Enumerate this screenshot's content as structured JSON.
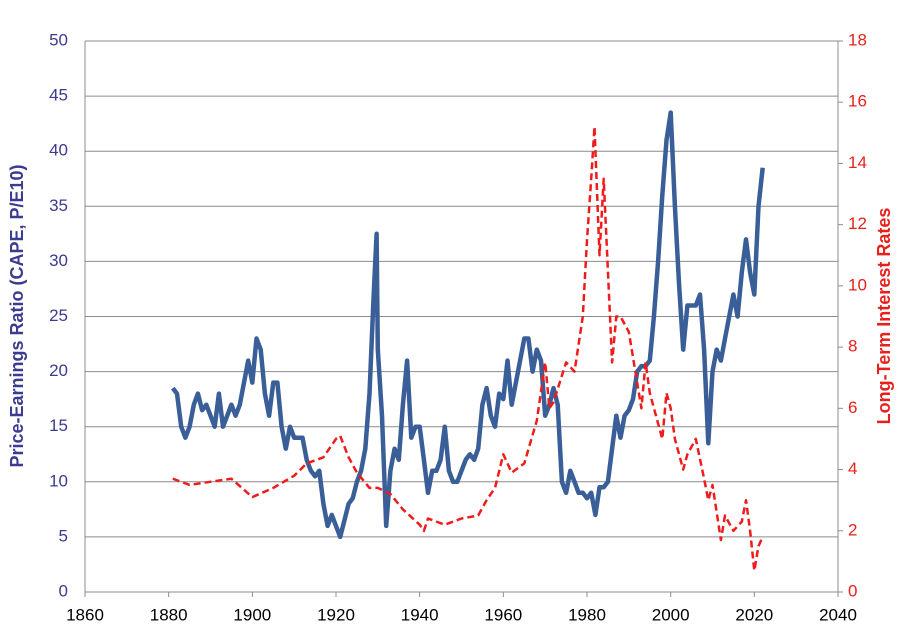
{
  "chart_data": {
    "type": "line",
    "y_label": "Price-Earnings Ratio (CAPE, P/E10)",
    "y2_label": "Long-Term Interest Rates",
    "xlim": [
      1860,
      2040
    ],
    "xticks": [
      1860,
      1880,
      1900,
      1920,
      1940,
      1960,
      1980,
      2000,
      2020,
      2040
    ],
    "ylim": [
      0,
      50
    ],
    "yticks": [
      0,
      5,
      10,
      15,
      20,
      25,
      30,
      35,
      40,
      45,
      50
    ],
    "y2lim": [
      0,
      18
    ],
    "y2ticks": [
      0,
      2,
      4,
      6,
      8,
      10,
      12,
      14,
      16,
      18
    ],
    "grid": true,
    "y_color": "#3b3b8f",
    "y2_color": "#e8201c",
    "series": [
      {
        "color": "#3a5f98",
        "dash": false,
        "axis": "y",
        "x": [
          1881,
          1882,
          1883,
          1884,
          1885,
          1886,
          1887,
          1888,
          1889,
          1890,
          1891,
          1892,
          1893,
          1894,
          1895,
          1896,
          1897,
          1898,
          1899,
          1900,
          1901,
          1902,
          1903,
          1904,
          1905,
          1906,
          1907,
          1908,
          1909,
          1910,
          1911,
          1912,
          1913,
          1914,
          1915,
          1916,
          1917,
          1918,
          1919,
          1920,
          1921,
          1922,
          1923,
          1924,
          1925,
          1926,
          1927,
          1928,
          1929,
          1929.7,
          1930,
          1931,
          1932,
          1933,
          1934,
          1935,
          1936,
          1937,
          1938,
          1939,
          1940,
          1941,
          1942,
          1943,
          1944,
          1945,
          1946,
          1947,
          1948,
          1949,
          1950,
          1951,
          1952,
          1953,
          1954,
          1955,
          1956,
          1957,
          1958,
          1959,
          1960,
          1961,
          1962,
          1963,
          1964,
          1965,
          1966,
          1967,
          1968,
          1969,
          1970,
          1971,
          1972,
          1973,
          1974,
          1975,
          1976,
          1977,
          1978,
          1979,
          1980,
          1981,
          1982,
          1983,
          1984,
          1985,
          1986,
          1987,
          1988,
          1989,
          1990,
          1991,
          1992,
          1993,
          1994,
          1995,
          1996,
          1997,
          1998,
          1999,
          2000,
          2001,
          2002,
          2003,
          2004,
          2005,
          2006,
          2007,
          2008,
          2009,
          2010,
          2011,
          2012,
          2013,
          2014,
          2015,
          2016,
          2017,
          2018,
          2019,
          2020,
          2021,
          2022
        ],
        "values": [
          18.5,
          18,
          15,
          14,
          15,
          17,
          18,
          16.5,
          17,
          16,
          15,
          18,
          15,
          16,
          17,
          16,
          17,
          19,
          21,
          19,
          23,
          22,
          18,
          16,
          19,
          19,
          15,
          13,
          15,
          14,
          14,
          14,
          12,
          11,
          10.5,
          11,
          8,
          6,
          7,
          6,
          5,
          6.5,
          8,
          8.5,
          10,
          11,
          13,
          18,
          27,
          32.5,
          22,
          16,
          6,
          11,
          13,
          12,
          17,
          21,
          14,
          15,
          15,
          12,
          9,
          11,
          11,
          12,
          15,
          11,
          10,
          10,
          11,
          12,
          12.5,
          12,
          13,
          17,
          18.5,
          16,
          15,
          18,
          17.5,
          21,
          17,
          19,
          21,
          23,
          23,
          20,
          22,
          21,
          16,
          17,
          18.5,
          17,
          10,
          9,
          11,
          10,
          9,
          9,
          8.5,
          9,
          7,
          9.5,
          9.5,
          10,
          13,
          16,
          14,
          16,
          16.5,
          17.5,
          20,
          20.5,
          20.5,
          21,
          25,
          30,
          36,
          41,
          43.5,
          35,
          28,
          22,
          26,
          26,
          26,
          27,
          22,
          13.5,
          20,
          22,
          21,
          23,
          25,
          27,
          25,
          29,
          32,
          29,
          27,
          35,
          38.5
        ]
      },
      {
        "color": "#ee1c1c",
        "dash": true,
        "axis": "y2",
        "x": [
          1881,
          1885,
          1890,
          1895,
          1900,
          1905,
          1910,
          1913,
          1917,
          1920,
          1921,
          1923,
          1925,
          1928,
          1930,
          1933,
          1936,
          1940,
          1941,
          1942,
          1946,
          1950,
          1954,
          1956,
          1958,
          1960,
          1962,
          1965,
          1968,
          1970,
          1971,
          1972,
          1975,
          1977,
          1979,
          1980,
          1981,
          1981.8,
          1983,
          1984,
          1985,
          1986,
          1987,
          1988,
          1990,
          1993,
          1994,
          1995,
          1998,
          1999,
          2000,
          2001,
          2003,
          2004,
          2006,
          2008,
          2009,
          2010,
          2012,
          2013,
          2015,
          2017,
          2018,
          2019,
          2020,
          2021,
          2022
        ],
        "values": [
          3.7,
          3.5,
          3.6,
          3.7,
          3.1,
          3.4,
          3.8,
          4.2,
          4.4,
          5.0,
          5.1,
          4.4,
          3.9,
          3.4,
          3.4,
          3.2,
          2.7,
          2.2,
          2.0,
          2.4,
          2.2,
          2.4,
          2.5,
          3.0,
          3.4,
          4.5,
          3.9,
          4.2,
          5.6,
          7.5,
          6.0,
          6.2,
          7.5,
          7.2,
          9,
          11.5,
          13.5,
          15.2,
          11,
          13.5,
          10.5,
          7.5,
          9,
          9,
          8.5,
          6,
          7.5,
          6.5,
          5,
          6.5,
          6,
          5,
          4,
          4.5,
          5,
          3.7,
          3,
          3.5,
          1.7,
          2.5,
          2,
          2.3,
          3,
          2,
          0.7,
          1.5,
          1.8
        ]
      }
    ]
  }
}
